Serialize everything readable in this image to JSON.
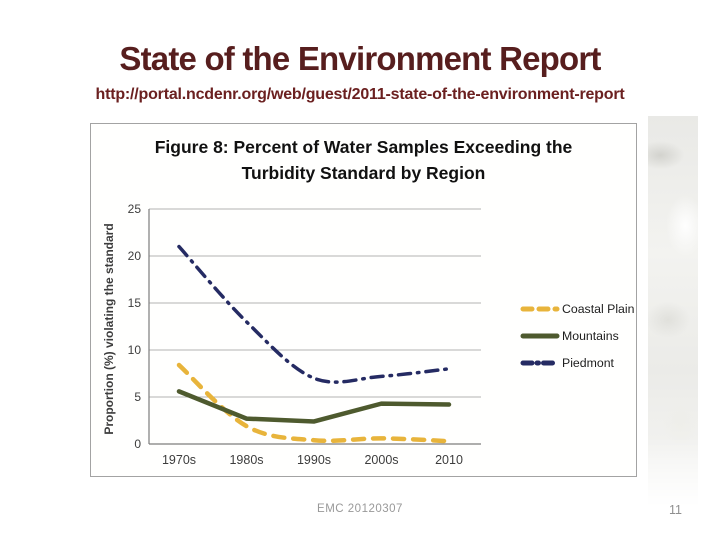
{
  "slide": {
    "title": "State of the Environment Report",
    "url": "http://portal.ncdenr.org/web/guest/2011-state-of-the-environment-report",
    "footer": "EMC 20120307",
    "page_number": "11",
    "colors": {
      "title_text": "#571e1e",
      "url_text": "#6b2020",
      "footer_text": "#999999"
    }
  },
  "chart_data": {
    "type": "line",
    "title_lines": [
      "Figure 8: Percent of Water Samples Exceeding the",
      "Turbidity Standard by Region"
    ],
    "ylabel": "Proportion (%) violating the standard",
    "xlabel": "",
    "categories": [
      "1970s",
      "1980s",
      "1990s",
      "2000s",
      "2010"
    ],
    "yticks": [
      0,
      5,
      10,
      15,
      20,
      25
    ],
    "ylim": [
      0,
      25
    ],
    "grid": "horizontal",
    "legend_position": "right",
    "series": [
      {
        "name": "Coastal Plain",
        "color": "#e8b43b",
        "style": "dashed",
        "smooth": true,
        "values": [
          8.4,
          1.9,
          0.4,
          0.6,
          0.3
        ]
      },
      {
        "name": "Mountains",
        "color": "#4e5a2e",
        "style": "solid",
        "smooth": false,
        "values": [
          5.6,
          2.7,
          2.4,
          4.3,
          4.2
        ]
      },
      {
        "name": "Piedmont",
        "color": "#252b63",
        "style": "dash-dot",
        "smooth": true,
        "values": [
          21,
          13,
          7,
          7.2,
          8
        ]
      }
    ],
    "style_colors": {
      "grid": "#b3b3b3",
      "axis": "#7d7d7d",
      "tick_text": "#3d3d3d"
    }
  }
}
